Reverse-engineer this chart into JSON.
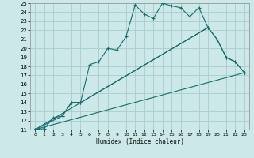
{
  "xlabel": "Humidex (Indice chaleur)",
  "bg_color": "#cce8e8",
  "grid_color": "#aacccc",
  "line_color": "#1a6b6b",
  "xlim": [
    -0.5,
    23.5
  ],
  "ylim": [
    11,
    25
  ],
  "xticks": [
    0,
    1,
    2,
    3,
    4,
    5,
    6,
    7,
    8,
    9,
    10,
    11,
    12,
    13,
    14,
    15,
    16,
    17,
    18,
    19,
    20,
    21,
    22,
    23
  ],
  "yticks": [
    11,
    12,
    13,
    14,
    15,
    16,
    17,
    18,
    19,
    20,
    21,
    22,
    23,
    24,
    25
  ],
  "line1_x": [
    0,
    1,
    2,
    3,
    4,
    5,
    6,
    7,
    8,
    9,
    10,
    11,
    12,
    13,
    14,
    15,
    16,
    17,
    18,
    19,
    20,
    21,
    22,
    23
  ],
  "line1_y": [
    11,
    11.1,
    12.3,
    12.5,
    14.0,
    14.0,
    18.2,
    18.5,
    20.0,
    19.8,
    21.3,
    24.8,
    23.8,
    23.3,
    25.0,
    24.7,
    24.5,
    23.5,
    24.5,
    22.3,
    21.0,
    19.0,
    18.5,
    17.3
  ],
  "line2_x": [
    0,
    3,
    4,
    5,
    19,
    20,
    21,
    22,
    23
  ],
  "line2_y": [
    11,
    12.5,
    14.0,
    14.0,
    22.3,
    21.0,
    19.0,
    18.5,
    17.3
  ],
  "line3_x": [
    0,
    23
  ],
  "line3_y": [
    11,
    17.3
  ],
  "line4_x": [
    0,
    19
  ],
  "line4_y": [
    11,
    22.3
  ]
}
